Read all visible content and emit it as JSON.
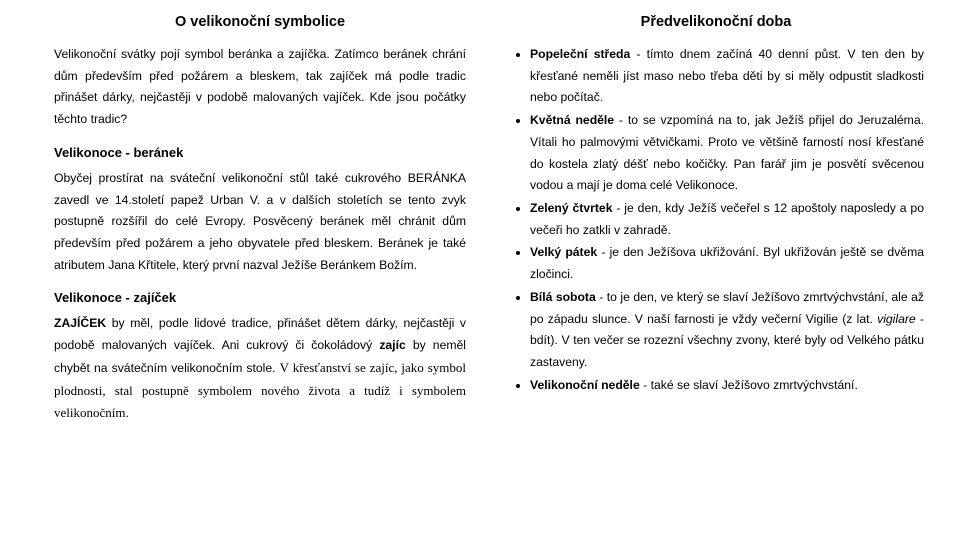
{
  "left": {
    "title": "O velikonoční symbolice",
    "intro": "Velikonoční svátky pojí symbol beránka a zajíčka. Zatímco beránek chrání dům především před požárem a bleskem, tak zajíček má podle tradic přinášet dárky, nejčastěji v podobě malovaných vajíček. Kde jsou počátky těchto tradic?",
    "h1": "Velikonoce - beránek",
    "p1": "Obyčej prostírat na sváteční velikonoční stůl také cukrového BERÁNKA zavedl ve 14.století papež Urban V. a v dalších stoletích se tento zvyk postupně rozšířil do celé Evropy. Posvěcený beránek měl chránit dům především před požárem a jeho obyvatele před bleskem. Beránek je také atributem Jana Křtitele, který první nazval Ježíše Beránkem Božím.",
    "h2": "Velikonoce - zajíček",
    "p2a_lead": "ZAJÍČEK",
    "p2a_body": " by měl, podle lidové tradice, přinášet dětem dárky, nejčastěji v podobě malovaných vajíček. Ani cukrový či čokoládový ",
    "p2a_bold": "zajíc",
    "p2a_tail": " by neměl chybět na svátečním velikonočním stole. ",
    "p2b": "V křesťanství se zajíc, jako symbol plodnosti, stal postupně symbolem nového života a tudíž i symbolem velikonočním."
  },
  "right": {
    "title": "Předvelikonoční doba",
    "items": [
      {
        "lead": "Popeleční středa",
        "rest": " - tímto dnem začíná 40 denní půst. V ten den by křesťané neměli jíst maso nebo třeba děti by si měly odpustit sladkosti nebo počítač."
      },
      {
        "lead": "Květná neděle",
        "rest": " - to se vzpomíná na to, jak Ježíš přijel do Jeruzaléma. Vítali ho palmovými větvičkami. Proto ve většině farností nosí křesťané do kostela zlatý déšť nebo kočičky. Pan farář jim je posvětí svěcenou vodou a mají je doma celé Velikonoce."
      },
      {
        "lead": "Zelený čtvrtek",
        "rest": " - je den, kdy Ježíš večeřel s 12 apoštoly naposledy a po večeři ho zatkli v zahradě."
      },
      {
        "lead": "Velký pátek",
        "rest": " - je den Ježíšova ukřižování. Byl ukřižován ještě se dvěma zločinci."
      },
      {
        "lead": "Bílá sobota",
        "rest": " - to je den, ve který se slaví Ježíšovo zmrtvýchvstání, ale až po západu slunce. V naší farnosti je vždy večerní Vigilie (z lat. ",
        "italic": "vigilare",
        "after_italic": " - bdít). V ten večer se rozezní všechny zvony, které byly od Velkého pátku zastaveny."
      },
      {
        "lead": "Velikonoční neděle",
        "rest": " - také se slaví Ježíšovo zmrtvýchvstání."
      }
    ]
  }
}
